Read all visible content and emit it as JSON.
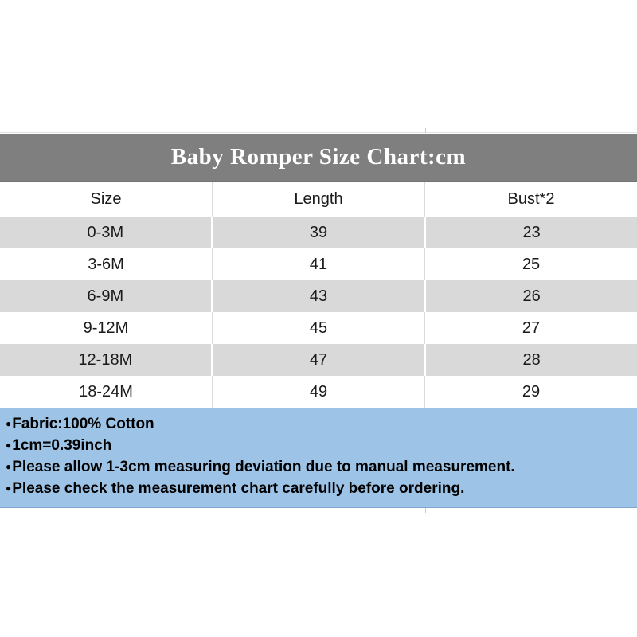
{
  "colors": {
    "title_bar_bg": "#7f7f7f",
    "title_text": "#ffffff",
    "row_alt_bg": "#d9d9d9",
    "row_bg": "#ffffff",
    "footer_bg": "#9dc3e6",
    "table_text": "#1a1a1a"
  },
  "chart_data": {
    "type": "table",
    "title": "Baby Romper Size Chart:cm",
    "unit": "cm",
    "columns": [
      "Size",
      "Length",
      "Bust*2"
    ],
    "rows": [
      [
        "0-3M",
        39,
        23
      ],
      [
        "3-6M",
        41,
        25
      ],
      [
        "6-9M",
        43,
        26
      ],
      [
        "9-12M",
        45,
        27
      ],
      [
        "12-18M",
        47,
        28
      ],
      [
        "18-24M",
        49,
        29
      ]
    ]
  },
  "footer": {
    "bullet": "●",
    "lines": [
      "Fabric:100% Cotton",
      "1cm=0.39inch",
      "Please allow 1-3cm measuring deviation due to manual measurement.",
      "Please check the measurement chart carefully before ordering."
    ]
  }
}
